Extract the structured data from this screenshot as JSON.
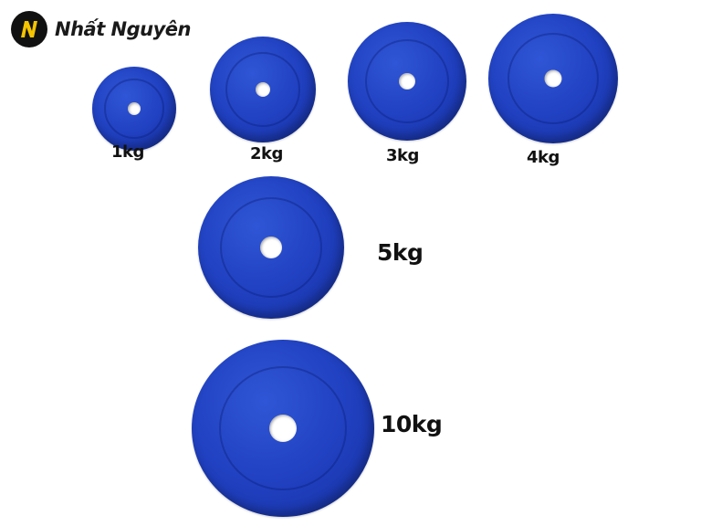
{
  "brand": {
    "name": "Nhất Nguyên",
    "icon": "n-logo-icon",
    "badge_color": "#111111",
    "accent_color": "#f5c400"
  },
  "plate_color": "#1f3fbf",
  "weights": [
    "1kg",
    "2kg",
    "3kg",
    "4kg",
    "5kg",
    "10kg"
  ]
}
